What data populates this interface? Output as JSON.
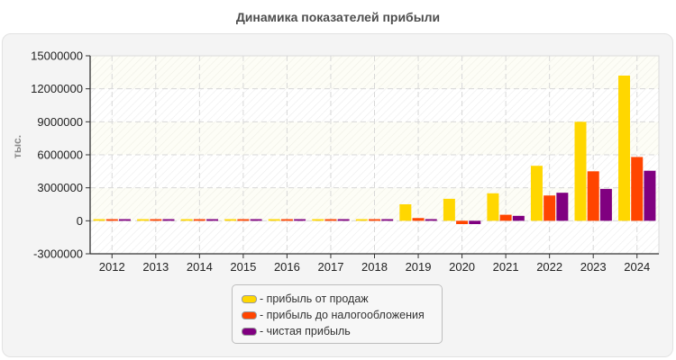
{
  "title": "Динамика показателей прибыли",
  "colors": {
    "sales_profit": "#FFD700",
    "pretax_profit": "#FF4500",
    "net_profit": "#800080",
    "card_bg": "#f4f4f4",
    "grid": "#d8d8d8"
  },
  "legend": {
    "items": [
      {
        "label": "- прибыль от продаж",
        "color": "#FFD700"
      },
      {
        "label": "- прибыль до налогообложения",
        "color": "#FF4500"
      },
      {
        "label": "- чистая прибыль",
        "color": "#800080"
      }
    ]
  },
  "chart_data": {
    "type": "bar",
    "title": "Динамика показателей прибыли",
    "xlabel": "",
    "ylabel": "тыс.",
    "ylim": [
      -3000000,
      15000000
    ],
    "yticks": [
      -3000000,
      0,
      3000000,
      6000000,
      9000000,
      12000000,
      15000000
    ],
    "ytick_labels": [
      "-3000000",
      "0",
      "3000000",
      "6000000",
      "9000000",
      "12000000",
      "15000000"
    ],
    "categories": [
      "2012",
      "2013",
      "2014",
      "2015",
      "2016",
      "2017",
      "2018",
      "2019",
      "2020",
      "2021",
      "2022",
      "2023",
      "2024"
    ],
    "series": [
      {
        "name": "прибыль от продаж",
        "color": "#FFD700",
        "values": [
          80000,
          80000,
          80000,
          80000,
          80000,
          80000,
          80000,
          1500000,
          2000000,
          2500000,
          5000000,
          9000000,
          13200000
        ]
      },
      {
        "name": "прибыль до налогообложения",
        "color": "#FF4500",
        "values": [
          80000,
          80000,
          80000,
          80000,
          80000,
          80000,
          80000,
          250000,
          -300000,
          550000,
          2300000,
          4500000,
          5800000
        ]
      },
      {
        "name": "чистая прибыль",
        "color": "#800080",
        "values": [
          80000,
          80000,
          80000,
          80000,
          80000,
          80000,
          80000,
          150000,
          -300000,
          450000,
          2550000,
          2900000,
          4550000
        ]
      }
    ],
    "grid": true,
    "legend_position": "bottom-center"
  }
}
